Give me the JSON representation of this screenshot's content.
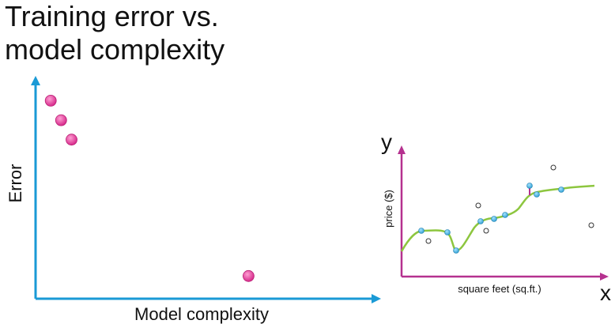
{
  "title": "Training error vs.\nmodel complexity",
  "left_plot": {
    "y_label": "Error",
    "x_label": "Model complexity",
    "axis_color": "#1a9ad6",
    "point_color": "#e0409a",
    "points": [
      {
        "complexity": 1,
        "error": 10.0
      },
      {
        "complexity": 2,
        "error": 9.0
      },
      {
        "complexity": 3,
        "error": 8.0
      },
      {
        "complexity": 20,
        "error": 1.0
      }
    ]
  },
  "right_plot": {
    "y_axis_letter": "y",
    "x_axis_letter": "x",
    "y_label": "price ($)",
    "x_label": "square feet (sq.ft.)",
    "axis_color": "#b5318f",
    "curve_color": "#8dc63f",
    "train_point_color": "#46b5e5",
    "test_point_color": "#ffffff"
  }
}
